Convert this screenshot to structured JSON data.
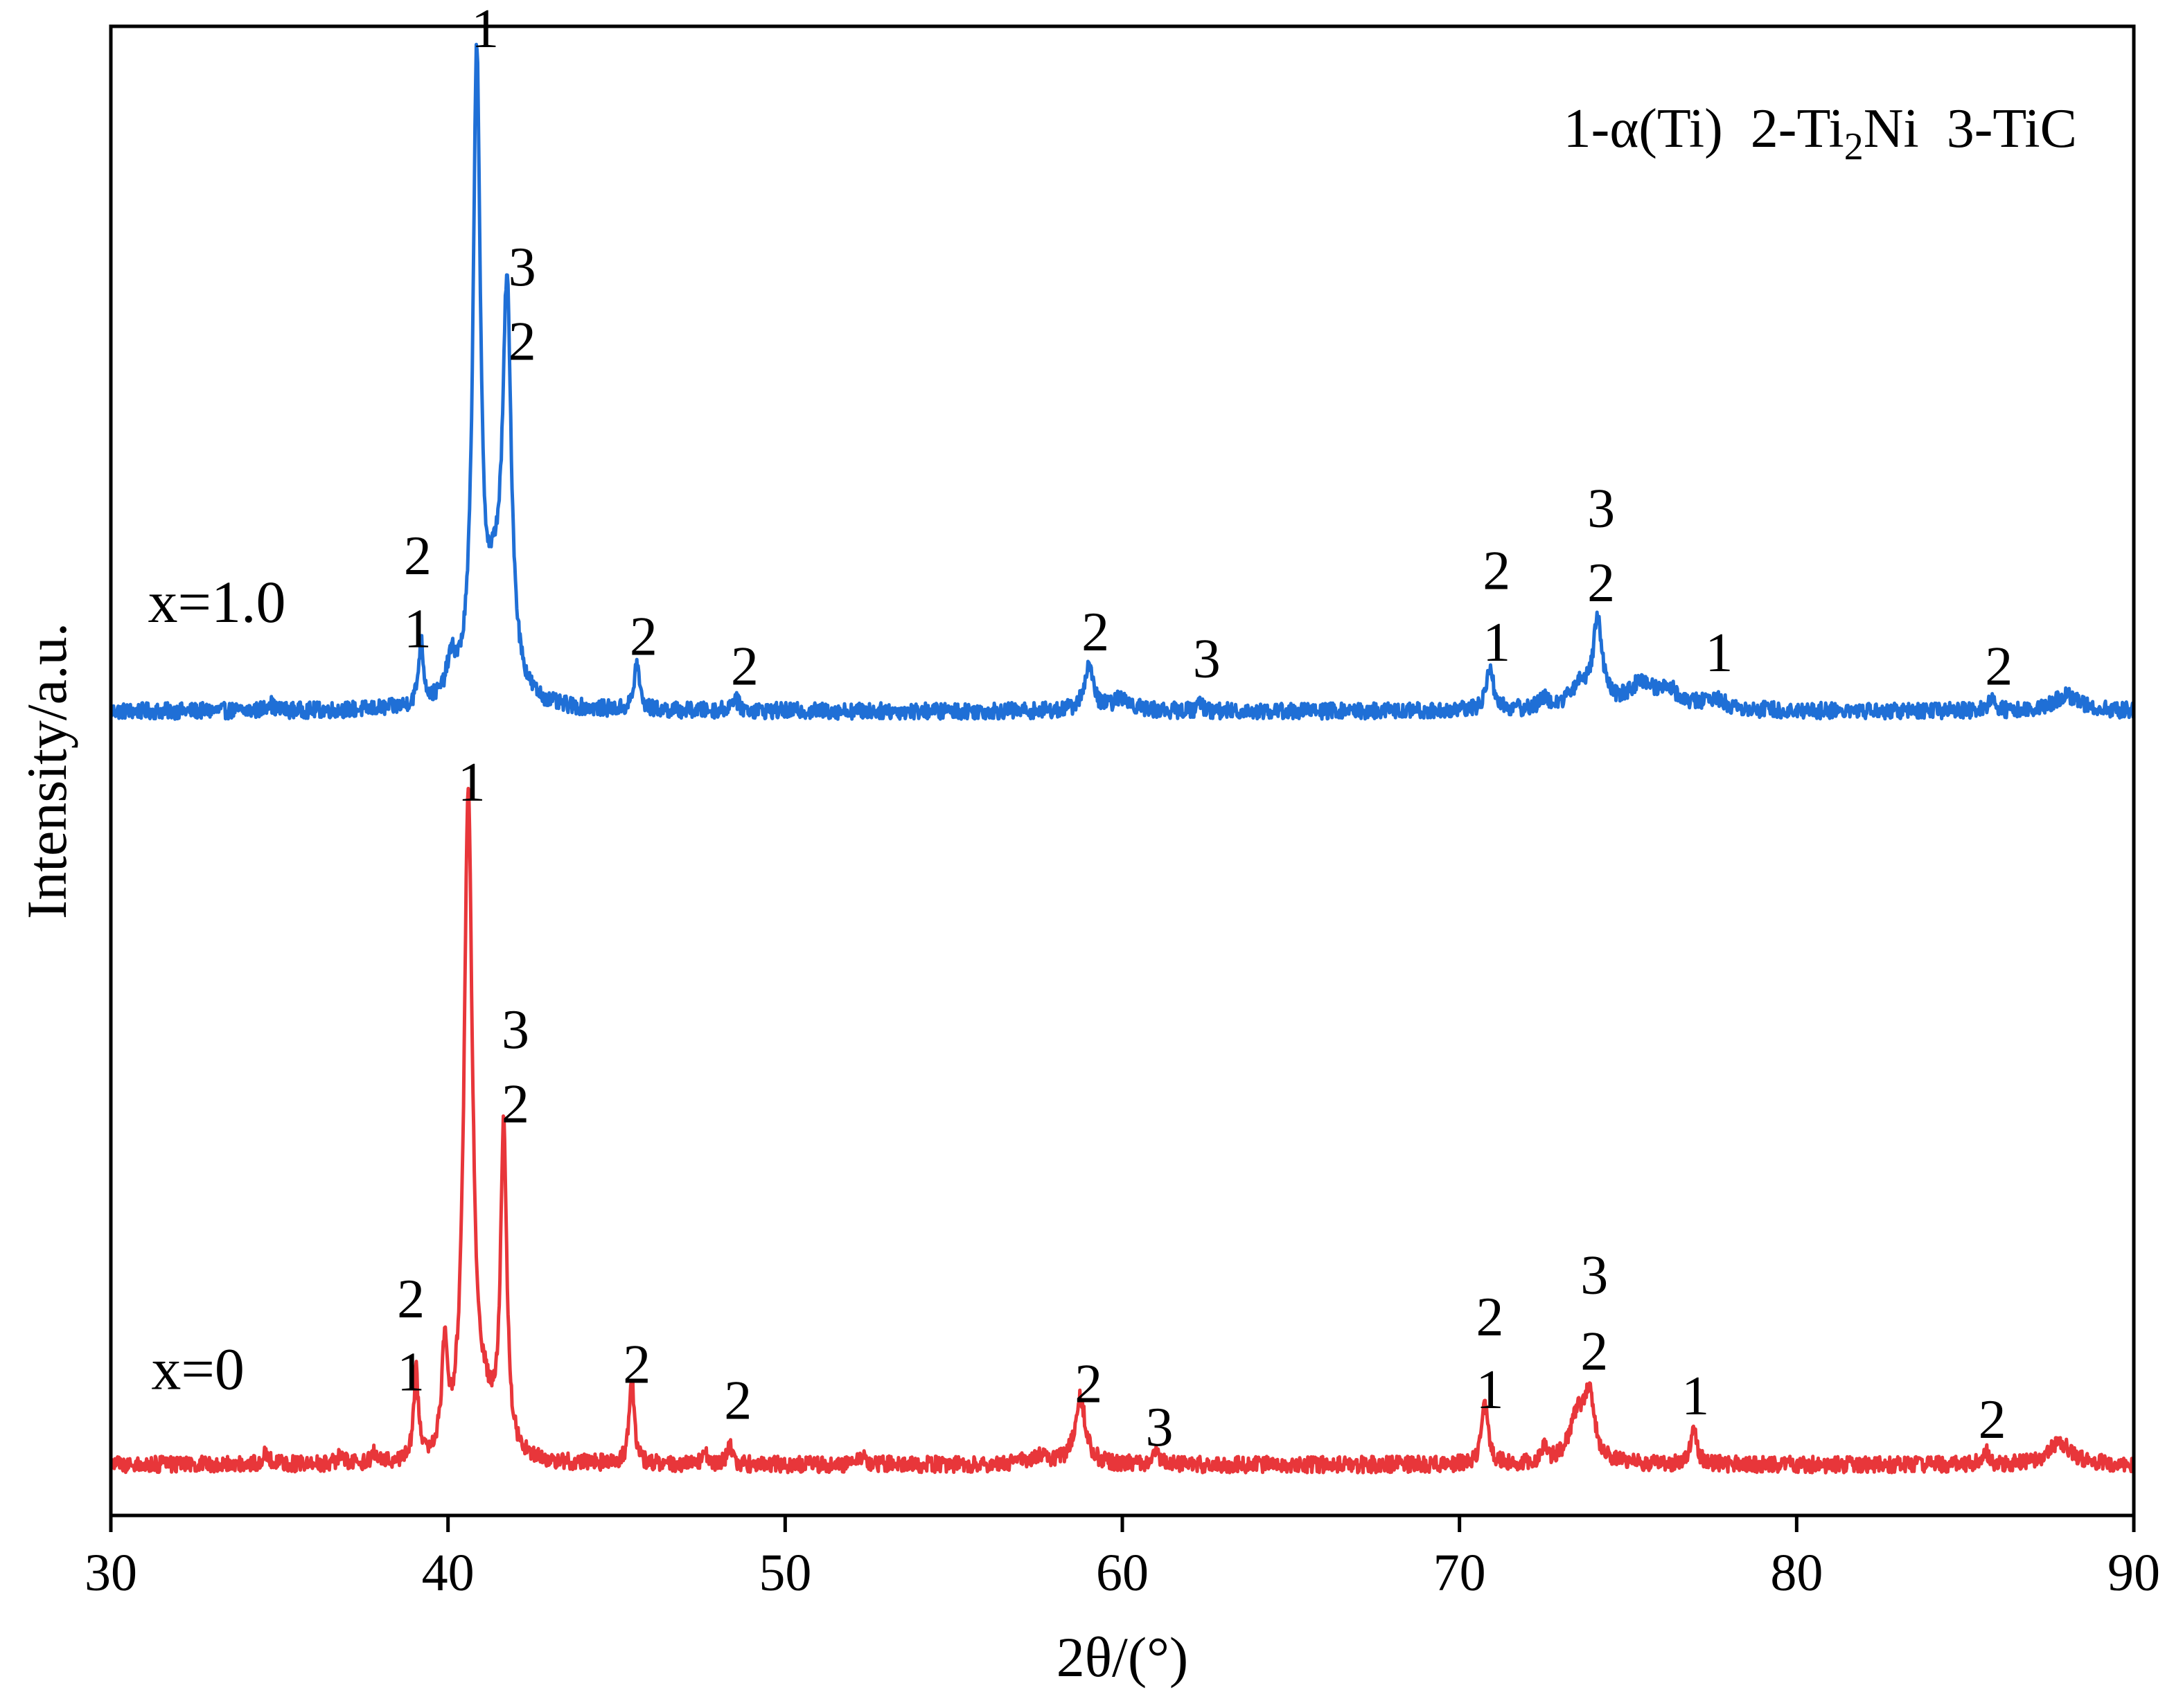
{
  "chart_data": {
    "type": "line",
    "xlabel": "2θ/(°)",
    "ylabel": "Intensity/a.u.",
    "xlim": [
      30,
      90
    ],
    "ylim": [
      0,
      100
    ],
    "xticks": [
      "30",
      "40",
      "50",
      "60",
      "70",
      "80",
      "90"
    ],
    "grid": false,
    "legend": [
      {
        "num": "1",
        "phase": "-α(Ti)",
        "sub": ""
      },
      {
        "num": "2",
        "phase": "-Ti",
        "sub": "2",
        "suffix": "Ni"
      },
      {
        "num": "3",
        "phase": "-TiC",
        "sub": ""
      }
    ],
    "legend_position": "top-right",
    "series": [
      {
        "name": "x=1.0",
        "color": "#1f6fd6",
        "baseline": 54,
        "noise": 0.55,
        "peaks": [
          {
            "x": 34.7,
            "h": 0.6,
            "w": 0.1
          },
          {
            "x": 39.2,
            "h": 4.2,
            "w": 0.09
          },
          {
            "x": 40.1,
            "h": 2.4,
            "w": 0.18
          },
          {
            "x": 40.85,
            "h": 42.5,
            "w": 0.13
          },
          {
            "x": 41.75,
            "h": 25.5,
            "w": 0.15
          },
          {
            "x": 41.4,
            "h": 6.0,
            "w": 0.35
          },
          {
            "x": 45.6,
            "h": 3.2,
            "w": 0.09
          },
          {
            "x": 48.5,
            "h": 0.9,
            "w": 0.12
          },
          {
            "x": 59.0,
            "h": 3.0,
            "w": 0.16
          },
          {
            "x": 60.0,
            "h": 0.8,
            "w": 0.35
          },
          {
            "x": 62.3,
            "h": 0.7,
            "w": 0.08
          },
          {
            "x": 70.9,
            "h": 2.9,
            "w": 0.13
          },
          {
            "x": 72.5,
            "h": 0.6,
            "w": 0.2
          },
          {
            "x": 73.6,
            "h": 1.5,
            "w": 0.4
          },
          {
            "x": 74.1,
            "h": 5.5,
            "w": 0.16
          },
          {
            "x": 75.4,
            "h": 1.7,
            "w": 0.5
          },
          {
            "x": 76.2,
            "h": 1.2,
            "w": 0.3
          },
          {
            "x": 77.5,
            "h": 0.7,
            "w": 0.5
          },
          {
            "x": 85.8,
            "h": 0.9,
            "w": 0.1
          },
          {
            "x": 88.0,
            "h": 1.1,
            "w": 0.45
          }
        ],
        "label_x": 31.1,
        "label_y": 60
      },
      {
        "name": "x=0",
        "color": "#e8363a",
        "baseline": 3.4,
        "noise": 0.55,
        "peaks": [
          {
            "x": 34.6,
            "h": 0.8,
            "w": 0.12
          },
          {
            "x": 36.8,
            "h": 0.5,
            "w": 0.1
          },
          {
            "x": 37.8,
            "h": 0.6,
            "w": 0.1
          },
          {
            "x": 39.05,
            "h": 5.9,
            "w": 0.08
          },
          {
            "x": 39.9,
            "h": 6.7,
            "w": 0.1
          },
          {
            "x": 40.6,
            "h": 44.3,
            "w": 0.15
          },
          {
            "x": 41.65,
            "h": 21.7,
            "w": 0.11
          },
          {
            "x": 41.1,
            "h": 2.5,
            "w": 0.3
          },
          {
            "x": 45.45,
            "h": 5.6,
            "w": 0.09
          },
          {
            "x": 47.6,
            "h": 1.0,
            "w": 0.07
          },
          {
            "x": 48.35,
            "h": 1.4,
            "w": 0.08
          },
          {
            "x": 52.3,
            "h": 0.5,
            "w": 0.15
          },
          {
            "x": 57.5,
            "h": 0.5,
            "w": 0.4
          },
          {
            "x": 58.75,
            "h": 4.5,
            "w": 0.19
          },
          {
            "x": 61.0,
            "h": 0.9,
            "w": 0.1
          },
          {
            "x": 70.75,
            "h": 4.0,
            "w": 0.12
          },
          {
            "x": 72.5,
            "h": 0.9,
            "w": 0.1
          },
          {
            "x": 73.5,
            "h": 3.0,
            "w": 0.3
          },
          {
            "x": 73.85,
            "h": 4.0,
            "w": 0.18
          },
          {
            "x": 76.95,
            "h": 2.5,
            "w": 0.11
          },
          {
            "x": 85.6,
            "h": 1.0,
            "w": 0.1
          },
          {
            "x": 87.8,
            "h": 1.5,
            "w": 0.4
          }
        ],
        "label_x": 31.2,
        "label_y": 8.5
      }
    ],
    "peak_labels": [
      {
        "text": "1",
        "x": 41.1,
        "y": 98.6
      },
      {
        "text": "3",
        "x": 42.2,
        "y": 82.6
      },
      {
        "text": "2",
        "x": 42.2,
        "y": 77.6
      },
      {
        "text": "2",
        "x": 39.1,
        "y": 63.2
      },
      {
        "text": "1",
        "x": 39.1,
        "y": 58.3
      },
      {
        "text": "2",
        "x": 45.8,
        "y": 57.8
      },
      {
        "text": "2",
        "x": 48.8,
        "y": 55.8
      },
      {
        "text": "2",
        "x": 59.2,
        "y": 58.1
      },
      {
        "text": "3",
        "x": 62.5,
        "y": 56.3
      },
      {
        "text": "2",
        "x": 71.1,
        "y": 62.2
      },
      {
        "text": "1",
        "x": 71.1,
        "y": 57.4
      },
      {
        "text": "3",
        "x": 74.2,
        "y": 66.4
      },
      {
        "text": "2",
        "x": 74.2,
        "y": 61.4
      },
      {
        "text": "1",
        "x": 77.7,
        "y": 56.7
      },
      {
        "text": "2",
        "x": 86.0,
        "y": 55.8
      },
      {
        "text": "1",
        "x": 40.7,
        "y": 48.0
      },
      {
        "text": "3",
        "x": 42.0,
        "y": 31.4
      },
      {
        "text": "2",
        "x": 42.0,
        "y": 26.4
      },
      {
        "text": "2",
        "x": 38.9,
        "y": 13.3
      },
      {
        "text": "1",
        "x": 38.9,
        "y": 8.4
      },
      {
        "text": "2",
        "x": 45.6,
        "y": 8.9
      },
      {
        "text": "2",
        "x": 48.6,
        "y": 6.5
      },
      {
        "text": "2",
        "x": 59.0,
        "y": 7.6
      },
      {
        "text": "3",
        "x": 61.1,
        "y": 4.7
      },
      {
        "text": "2",
        "x": 70.9,
        "y": 12.1
      },
      {
        "text": "1",
        "x": 70.9,
        "y": 7.2
      },
      {
        "text": "3",
        "x": 74.0,
        "y": 14.9
      },
      {
        "text": "2",
        "x": 74.0,
        "y": 9.8
      },
      {
        "text": "1",
        "x": 77.0,
        "y": 6.8
      },
      {
        "text": "2",
        "x": 85.8,
        "y": 5.2
      }
    ]
  }
}
